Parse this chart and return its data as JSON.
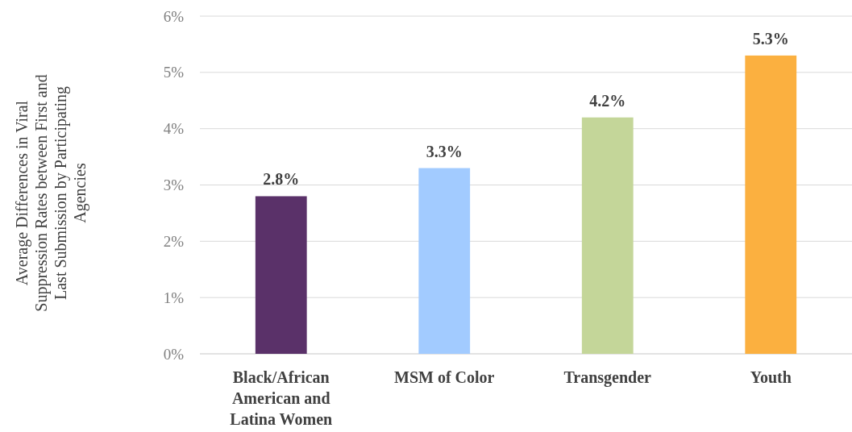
{
  "chart_data": {
    "type": "bar",
    "ylabel": "Average Differences in Viral Suppression Rates between First and Last Submission by Participating Agencies",
    "categories": [
      "Black/African American and Latina Women",
      "MSM of Color",
      "Transgender",
      "Youth"
    ],
    "values": [
      2.8,
      3.3,
      4.2,
      5.3
    ],
    "colors": [
      "#5a3169",
      "#a2cbff",
      "#c4d699",
      "#fbb040"
    ],
    "value_labels": [
      "2.8%",
      "3.3%",
      "4.2%",
      "5.3%"
    ],
    "ylim": [
      0,
      6
    ],
    "yticks": [
      {
        "value": 0,
        "label": "0%"
      },
      {
        "value": 1,
        "label": "1%"
      },
      {
        "value": 2,
        "label": "2%"
      },
      {
        "value": 3,
        "label": "3%"
      },
      {
        "value": 4,
        "label": "4%"
      },
      {
        "value": 5,
        "label": "5%"
      },
      {
        "value": 6,
        "label": "6%"
      }
    ],
    "grid": "y"
  }
}
